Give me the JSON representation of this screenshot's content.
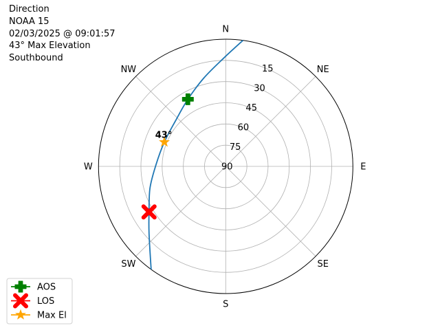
{
  "title_lines": [
    "Direction",
    "NOAA 15",
    "02/03/2025 @ 09:01:57",
    "43° Max Elevation",
    "Southbound"
  ],
  "chart_data": {
    "type": "polar-line",
    "theta_zero": "north",
    "theta_direction": "clockwise",
    "r_axis": "elevation (deg), 90 at center, 0 at edge",
    "rlim": [
      0,
      90
    ],
    "direction_labels": [
      {
        "az": 0,
        "label": "N"
      },
      {
        "az": 45,
        "label": "NE"
      },
      {
        "az": 90,
        "label": "E"
      },
      {
        "az": 135,
        "label": "SE"
      },
      {
        "az": 180,
        "label": "S"
      },
      {
        "az": 225,
        "label": "SW"
      },
      {
        "az": 270,
        "label": "W"
      },
      {
        "az": 315,
        "label": "NW"
      }
    ],
    "elevation_ticks": [
      15,
      30,
      45,
      60,
      75,
      90
    ],
    "grid": true,
    "track": {
      "color": "#1f77b4",
      "points": [
        {
          "az": 7.8,
          "el": 0
        },
        {
          "az": 359.4,
          "el": 12.8
        },
        {
          "az": 346.2,
          "el": 25.5
        },
        {
          "az": 330.6,
          "el": 35.5
        },
        {
          "az": 313.8,
          "el": 41.7
        },
        {
          "az": 291.6,
          "el": 43.3
        },
        {
          "az": 271.1,
          "el": 40.6
        },
        {
          "az": 254.1,
          "el": 34.3
        },
        {
          "az": 239.3,
          "el": 26.9
        },
        {
          "az": 228.7,
          "el": 17.8
        },
        {
          "az": 215.9,
          "el": 0
        }
      ]
    },
    "markers": [
      {
        "name": "AOS",
        "az": 330.6,
        "el": 35.5,
        "color": "#008000",
        "shape": "plus"
      },
      {
        "name": "LOS",
        "az": 239.3,
        "el": 26.9,
        "color": "#ff0000",
        "shape": "x"
      },
      {
        "name": "Max El",
        "az": 291.6,
        "el": 43.3,
        "color": "#ffa500",
        "shape": "star"
      }
    ],
    "annotation": {
      "text": "43°",
      "az": 291.6,
      "el": 43.3
    },
    "legend": {
      "placement": "lower-left",
      "entries": [
        "AOS",
        "LOS",
        "Max El"
      ]
    }
  }
}
